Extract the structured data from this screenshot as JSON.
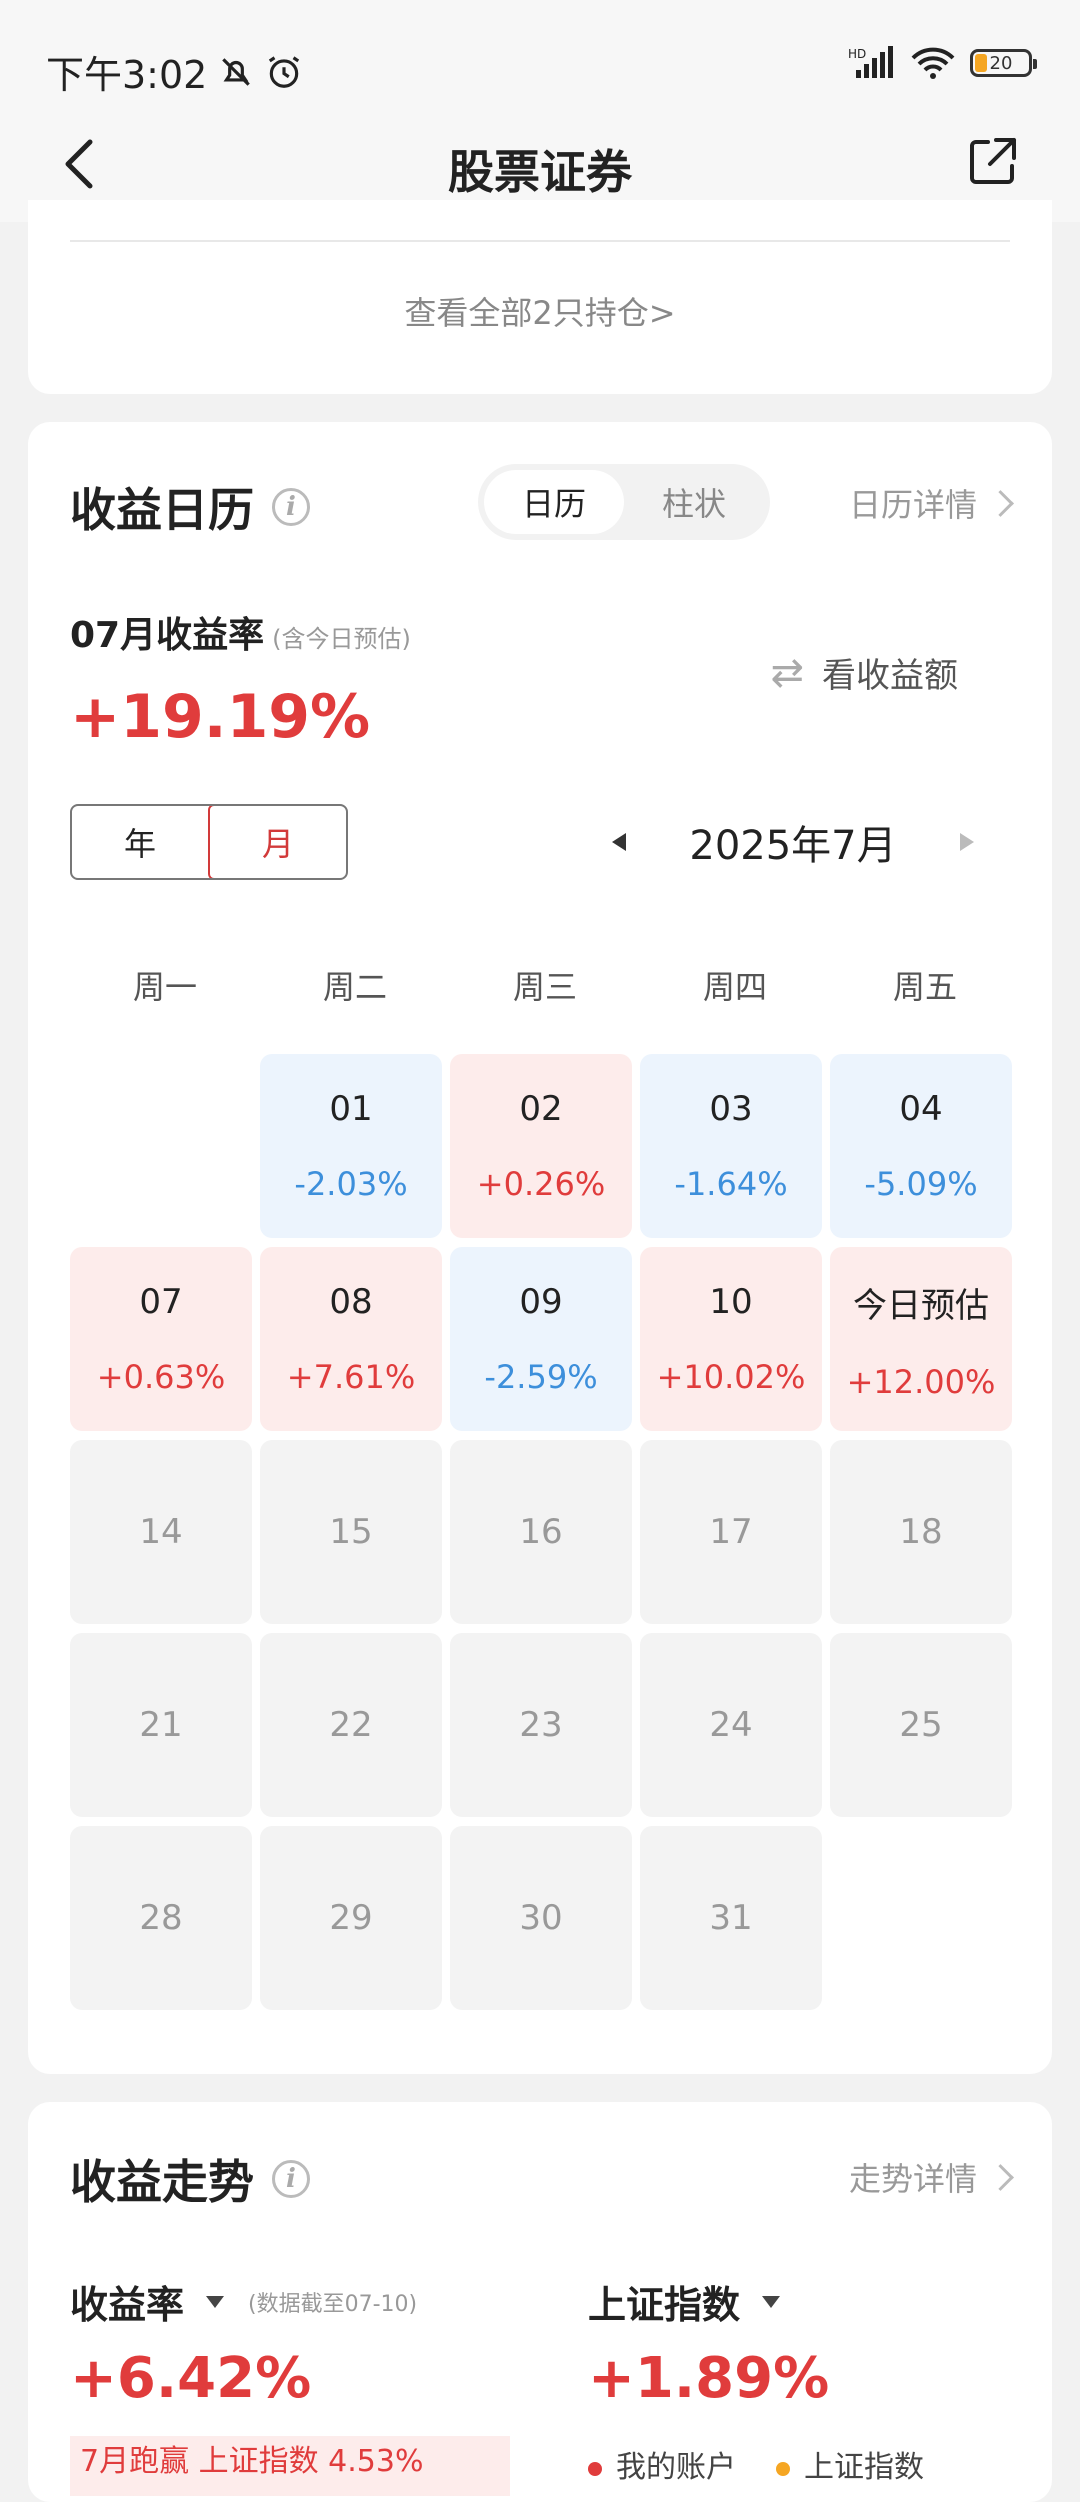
{
  "status_bar": {
    "time": "下午3:02",
    "battery": "20"
  },
  "nav": {
    "title": "股票证券"
  },
  "holdings": {
    "view_all": "查看全部2只持仓>"
  },
  "calendar": {
    "title": "收益日历",
    "view_options": [
      "日历",
      "柱状"
    ],
    "detail_link": "日历详情",
    "month_label": "07月收益率",
    "month_label_note": "(含今日预估)",
    "month_return": "+19.19%",
    "toggle_amount": "看收益额",
    "period_options": [
      "年",
      "月"
    ],
    "current_month": "2025年7月",
    "weekdays": [
      "周一",
      "周二",
      "周三",
      "周四",
      "周五"
    ],
    "cells": [
      {
        "day": "01",
        "pct": "-2.03%",
        "state": "down"
      },
      {
        "day": "02",
        "pct": "+0.26%",
        "state": "up"
      },
      {
        "day": "03",
        "pct": "-1.64%",
        "state": "down"
      },
      {
        "day": "04",
        "pct": "-5.09%",
        "state": "down"
      },
      {
        "day": "07",
        "pct": "+0.63%",
        "state": "up"
      },
      {
        "day": "08",
        "pct": "+7.61%",
        "state": "up"
      },
      {
        "day": "09",
        "pct": "-2.59%",
        "state": "down"
      },
      {
        "day": "10",
        "pct": "+10.02%",
        "state": "up"
      },
      {
        "day": "今日预估",
        "pct": "+12.00%",
        "state": "up"
      },
      {
        "day": "14",
        "pct": "",
        "state": "future"
      },
      {
        "day": "15",
        "pct": "",
        "state": "future"
      },
      {
        "day": "16",
        "pct": "",
        "state": "future"
      },
      {
        "day": "17",
        "pct": "",
        "state": "future"
      },
      {
        "day": "18",
        "pct": "",
        "state": "future"
      },
      {
        "day": "21",
        "pct": "",
        "state": "future"
      },
      {
        "day": "22",
        "pct": "",
        "state": "future"
      },
      {
        "day": "23",
        "pct": "",
        "state": "future"
      },
      {
        "day": "24",
        "pct": "",
        "state": "future"
      },
      {
        "day": "25",
        "pct": "",
        "state": "future"
      },
      {
        "day": "28",
        "pct": "",
        "state": "future"
      },
      {
        "day": "29",
        "pct": "",
        "state": "future"
      },
      {
        "day": "30",
        "pct": "",
        "state": "future"
      },
      {
        "day": "31",
        "pct": "",
        "state": "future"
      }
    ]
  },
  "trend": {
    "title": "收益走势",
    "detail_link": "走势详情",
    "return_label": "收益率",
    "return_note": "(数据截至07-10)",
    "return_value": "+6.42%",
    "index_label": "上证指数",
    "index_value": "+1.89%",
    "strip_text": "7月跑赢 上证指数 4.53%",
    "legend": [
      "我的账户",
      "上证指数"
    ]
  },
  "colors": {
    "up": "#e03c3c",
    "down": "#3d8fdb",
    "accent": "#d23a3a",
    "index_legend": "#f5a623"
  }
}
